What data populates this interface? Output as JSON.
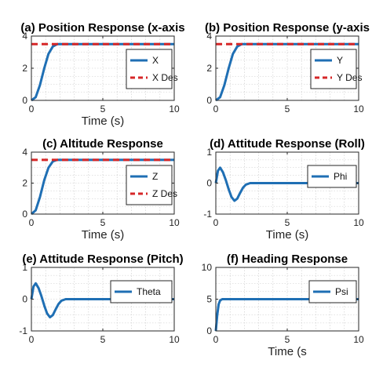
{
  "chart_data": [
    {
      "type": "line",
      "title": "(a) Position Response (x-axis",
      "xlabel": "Time (s)",
      "xlim": [
        0,
        10
      ],
      "ylim": [
        0,
        4
      ],
      "xticks": [
        "0",
        "5",
        "10"
      ],
      "yticks": [
        "0",
        "2",
        "4"
      ],
      "grid": true,
      "legend_position": "top-right",
      "series": [
        {
          "name": "X",
          "color": "#1f6fb4",
          "style": "solid",
          "x": [
            0,
            0.3,
            0.6,
            0.9,
            1.2,
            1.5,
            1.8,
            2.0,
            3,
            4,
            5,
            6,
            7,
            8,
            9,
            10
          ],
          "y": [
            0,
            0.2,
            0.95,
            2.0,
            2.9,
            3.35,
            3.5,
            3.5,
            3.5,
            3.5,
            3.5,
            3.5,
            3.5,
            3.5,
            3.5,
            3.5
          ]
        },
        {
          "name": "X Des",
          "color": "#d62728",
          "style": "dashed",
          "x": [
            0,
            10
          ],
          "y": [
            3.5,
            3.5
          ]
        }
      ]
    },
    {
      "type": "line",
      "title": "(b) Position Response (y-axis",
      "xlabel": "",
      "xlim": [
        0,
        10
      ],
      "ylim": [
        0,
        4
      ],
      "xticks": [
        "0",
        "5",
        "10"
      ],
      "yticks": [
        "0",
        "2",
        "4"
      ],
      "grid": true,
      "legend_position": "top-right",
      "series": [
        {
          "name": "Y",
          "color": "#1f6fb4",
          "style": "solid",
          "x": [
            0,
            0.3,
            0.6,
            0.9,
            1.2,
            1.5,
            1.8,
            2.0,
            3,
            4,
            5,
            6,
            7,
            8,
            9,
            10
          ],
          "y": [
            0,
            0.2,
            0.95,
            2.0,
            2.9,
            3.35,
            3.5,
            3.5,
            3.5,
            3.5,
            3.5,
            3.5,
            3.5,
            3.5,
            3.5,
            3.5
          ]
        },
        {
          "name": "Y Des",
          "color": "#d62728",
          "style": "dashed",
          "x": [
            0,
            10
          ],
          "y": [
            3.5,
            3.5
          ]
        }
      ]
    },
    {
      "type": "line",
      "title": "(c) Altitude Response",
      "xlabel": "Time (s)",
      "xlim": [
        0,
        10
      ],
      "ylim": [
        0,
        4
      ],
      "xticks": [
        "0",
        "5",
        "10"
      ],
      "yticks": [
        "0",
        "2",
        "4"
      ],
      "grid": true,
      "legend_position": "top-right",
      "series": [
        {
          "name": "Z",
          "color": "#1f6fb4",
          "style": "solid",
          "x": [
            0,
            0.3,
            0.6,
            0.9,
            1.2,
            1.5,
            1.8,
            2.0,
            3,
            4,
            5,
            6,
            7,
            8,
            9,
            10
          ],
          "y": [
            0,
            0.25,
            1.1,
            2.2,
            3.0,
            3.4,
            3.5,
            3.5,
            3.5,
            3.5,
            3.5,
            3.5,
            3.5,
            3.5,
            3.5,
            3.5
          ]
        },
        {
          "name": "Z Des",
          "color": "#d62728",
          "style": "dashed",
          "x": [
            0,
            10
          ],
          "y": [
            3.5,
            3.5
          ]
        }
      ]
    },
    {
      "type": "line",
      "title": "(d) Attitude Response (Roll)",
      "xlabel": "Time (s)",
      "xlim": [
        0,
        10
      ],
      "ylim": [
        -1,
        1
      ],
      "xticks": [
        "0",
        "5",
        "10"
      ],
      "yticks": [
        "-1",
        "0",
        "1"
      ],
      "grid": true,
      "legend_position": "top-right",
      "series": [
        {
          "name": "Phi",
          "color": "#1f6fb4",
          "style": "solid",
          "x": [
            0,
            0.15,
            0.3,
            0.5,
            0.7,
            0.9,
            1.1,
            1.3,
            1.5,
            1.7,
            1.9,
            2.1,
            2.4,
            2.8,
            3.5,
            5,
            7,
            10
          ],
          "y": [
            0,
            0.4,
            0.5,
            0.35,
            0.1,
            -0.2,
            -0.45,
            -0.57,
            -0.5,
            -0.32,
            -0.15,
            -0.05,
            0,
            0,
            0,
            0,
            0,
            0
          ]
        }
      ]
    },
    {
      "type": "line",
      "title": "(e) Attitude Response (Pitch)",
      "xlabel": "",
      "xlim": [
        0,
        10
      ],
      "ylim": [
        -1,
        1
      ],
      "xticks": [
        "0",
        "5",
        "10"
      ],
      "yticks": [
        "-1",
        "0",
        "1"
      ],
      "grid": true,
      "legend_position": "top-right",
      "series": [
        {
          "name": "Theta",
          "color": "#1f6fb4",
          "style": "solid",
          "x": [
            0,
            0.15,
            0.3,
            0.5,
            0.7,
            0.9,
            1.1,
            1.3,
            1.5,
            1.7,
            1.9,
            2.1,
            2.4,
            2.8,
            3.5,
            5,
            7,
            10
          ],
          "y": [
            0,
            0.4,
            0.5,
            0.35,
            0.1,
            -0.2,
            -0.45,
            -0.57,
            -0.5,
            -0.32,
            -0.15,
            -0.05,
            0,
            0,
            0,
            0,
            0,
            0
          ]
        }
      ]
    },
    {
      "type": "line",
      "title": "(f) Heading Response",
      "xlabel": "Time (s",
      "xlim": [
        0,
        10
      ],
      "ylim": [
        0,
        10
      ],
      "xticks": [
        "0",
        "5",
        "10"
      ],
      "yticks": [
        "0",
        "5",
        "10"
      ],
      "grid": true,
      "legend_position": "top-right",
      "series": [
        {
          "name": "Psi",
          "color": "#1f6fb4",
          "style": "solid",
          "x": [
            0,
            0.1,
            0.2,
            0.3,
            0.45,
            0.6,
            1,
            2,
            4,
            6,
            8,
            10
          ],
          "y": [
            0,
            2.5,
            4.2,
            4.8,
            5,
            5,
            5,
            5,
            5,
            5,
            5,
            5
          ]
        }
      ]
    }
  ]
}
